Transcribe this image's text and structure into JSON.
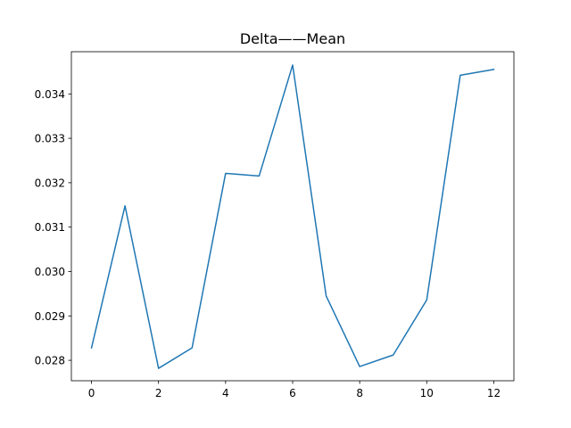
{
  "chart_data": {
    "type": "line",
    "title": "Delta——Mean",
    "xlabel": "",
    "ylabel": "",
    "x": [
      0,
      1,
      2,
      3,
      4,
      5,
      6,
      7,
      8,
      9,
      10,
      11,
      12
    ],
    "series": [
      {
        "values": [
          0.02828,
          0.03148,
          0.02782,
          0.02828,
          0.03221,
          0.03215,
          0.03465,
          0.02945,
          0.02786,
          0.02812,
          0.02936,
          0.03442,
          0.03455
        ],
        "color": "#1f77b4"
      }
    ],
    "xlim": [
      -0.6,
      12.6
    ],
    "ylim": [
      0.02754,
      0.03495
    ],
    "x_ticks": [
      0,
      2,
      4,
      6,
      8,
      10,
      12
    ],
    "x_tick_labels": [
      "0",
      "2",
      "4",
      "6",
      "8",
      "10",
      "12"
    ],
    "y_ticks": [
      0.028,
      0.029,
      0.03,
      0.031,
      0.032,
      0.033,
      0.034
    ],
    "y_tick_labels": [
      "0.028",
      "0.029",
      "0.030",
      "0.031",
      "0.032",
      "0.033",
      "0.034"
    ],
    "grid": false,
    "legend": "none"
  }
}
